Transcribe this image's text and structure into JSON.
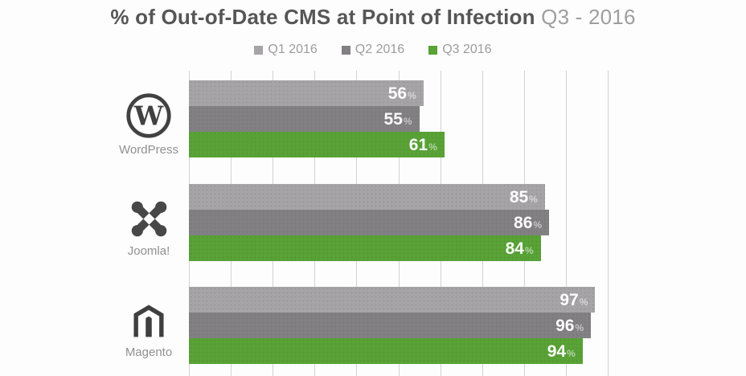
{
  "title": {
    "main": "% of Out-of-Date CMS at Point of Infection",
    "period": "Q3 - 2016"
  },
  "chart_data": {
    "type": "bar",
    "orientation": "horizontal",
    "title": "% of Out-of-Date CMS at Point of Infection Q3 - 2016",
    "categories": [
      "WordPress",
      "Joomla!",
      "Magento"
    ],
    "category_icons": [
      "wordpress-logo",
      "joomla-logo",
      "magento-logo"
    ],
    "series": [
      {
        "name": "Q1 2016",
        "color": "#a6a4a6",
        "values": [
          56,
          85,
          97
        ]
      },
      {
        "name": "Q2 2016",
        "color": "#828082",
        "values": [
          55,
          86,
          96
        ]
      },
      {
        "name": "Q3 2016",
        "color": "#58a236",
        "values": [
          61,
          84,
          94
        ]
      }
    ],
    "value_suffix": "%",
    "xlim": [
      0,
      100
    ],
    "gridline_step": 10,
    "grid": true,
    "legend_position": "top",
    "value_labels": "inside-end",
    "colors": {
      "gridline": "#d2d2d2",
      "title_main": "#565656",
      "title_period": "#9e9e9e",
      "legend_text": "#9c9c9c",
      "category_text": "#909090",
      "icon": "#414141",
      "value_text": "#ffffff"
    }
  }
}
